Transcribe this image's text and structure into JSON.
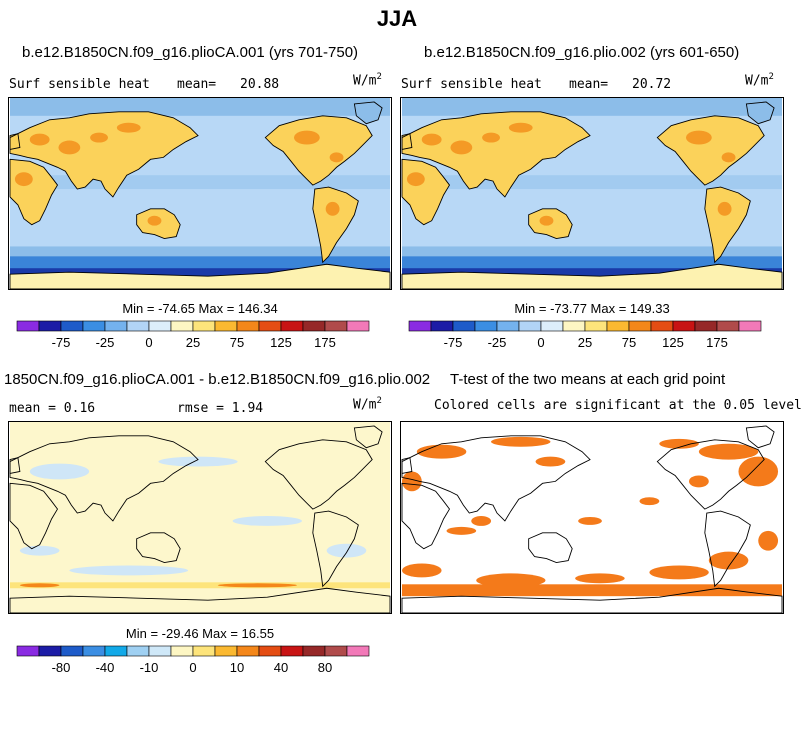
{
  "title": "JJA",
  "panels": [
    {
      "title": "b.e12.B1850CN.f09_g16.plioCA.001 (yrs 701-750)",
      "variable": "Surf sensible heat",
      "mean_label": "mean=",
      "mean_value": "20.88",
      "units": "W/m",
      "units_exp": "2",
      "minmax": "Min = -74.65 Max = 146.34"
    },
    {
      "title": "b.e12.B1850CN.f09_g16.plio.002 (yrs 601-650)",
      "variable": "Surf sensible heat",
      "mean_label": "mean=",
      "mean_value": "20.72",
      "units": "W/m",
      "units_exp": "2",
      "minmax": "Min = -73.77 Max = 149.33"
    },
    {
      "title": "1850CN.f09_g16.plioCA.001 - b.e12.B1850CN.f09_g16.plio.002",
      "mean_text": "mean =   0.16",
      "rmse_text": "rmse =   1.94",
      "units": "W/m",
      "units_exp": "2",
      "minmax": "Min = -29.46 Max =  16.55"
    },
    {
      "title": "T-test of the two means at each grid point",
      "subtitle": "Colored cells are significant at the 0.05 level"
    }
  ],
  "colorbar_abs": {
    "colors": [
      "#8a2be2",
      "#1c1ca6",
      "#1e5bc9",
      "#3b8ee3",
      "#74b2ee",
      "#b2d4f6",
      "#dceefb",
      "#fdf6c3",
      "#fde47b",
      "#fbb931",
      "#f4871a",
      "#e44d13",
      "#c81414",
      "#962828",
      "#b04b4b",
      "#f279b8"
    ],
    "labels": [
      "-75",
      "-25",
      "0",
      "25",
      "75",
      "125",
      "175"
    ]
  },
  "colorbar_diff": {
    "colors": [
      "#8a2be2",
      "#1c1ca6",
      "#1e5bc9",
      "#3b8ee3",
      "#12a9e8",
      "#9fd0f2",
      "#cfe8f8",
      "#fdf6c3",
      "#fde47b",
      "#fbb931",
      "#f4871a",
      "#e44d13",
      "#c81414",
      "#962828",
      "#b04b4b",
      "#f279b8"
    ],
    "labels": [
      "-80",
      "-40",
      "-10",
      "0",
      "10",
      "40",
      "80"
    ]
  },
  "map_colors": {
    "ocean": "#b8d8f6",
    "ocean_deep": "#8cbde9",
    "south_band": "#3a84d8",
    "south_edge": "#1a3aa8",
    "land_warm": "#fbd25a",
    "land_hot": "#f49a25",
    "land_mild": "#fdf2b0",
    "diff_bg": "#fdf7cc",
    "diff_neg": "#cfe6f7",
    "ttest": "#f47a1a"
  }
}
